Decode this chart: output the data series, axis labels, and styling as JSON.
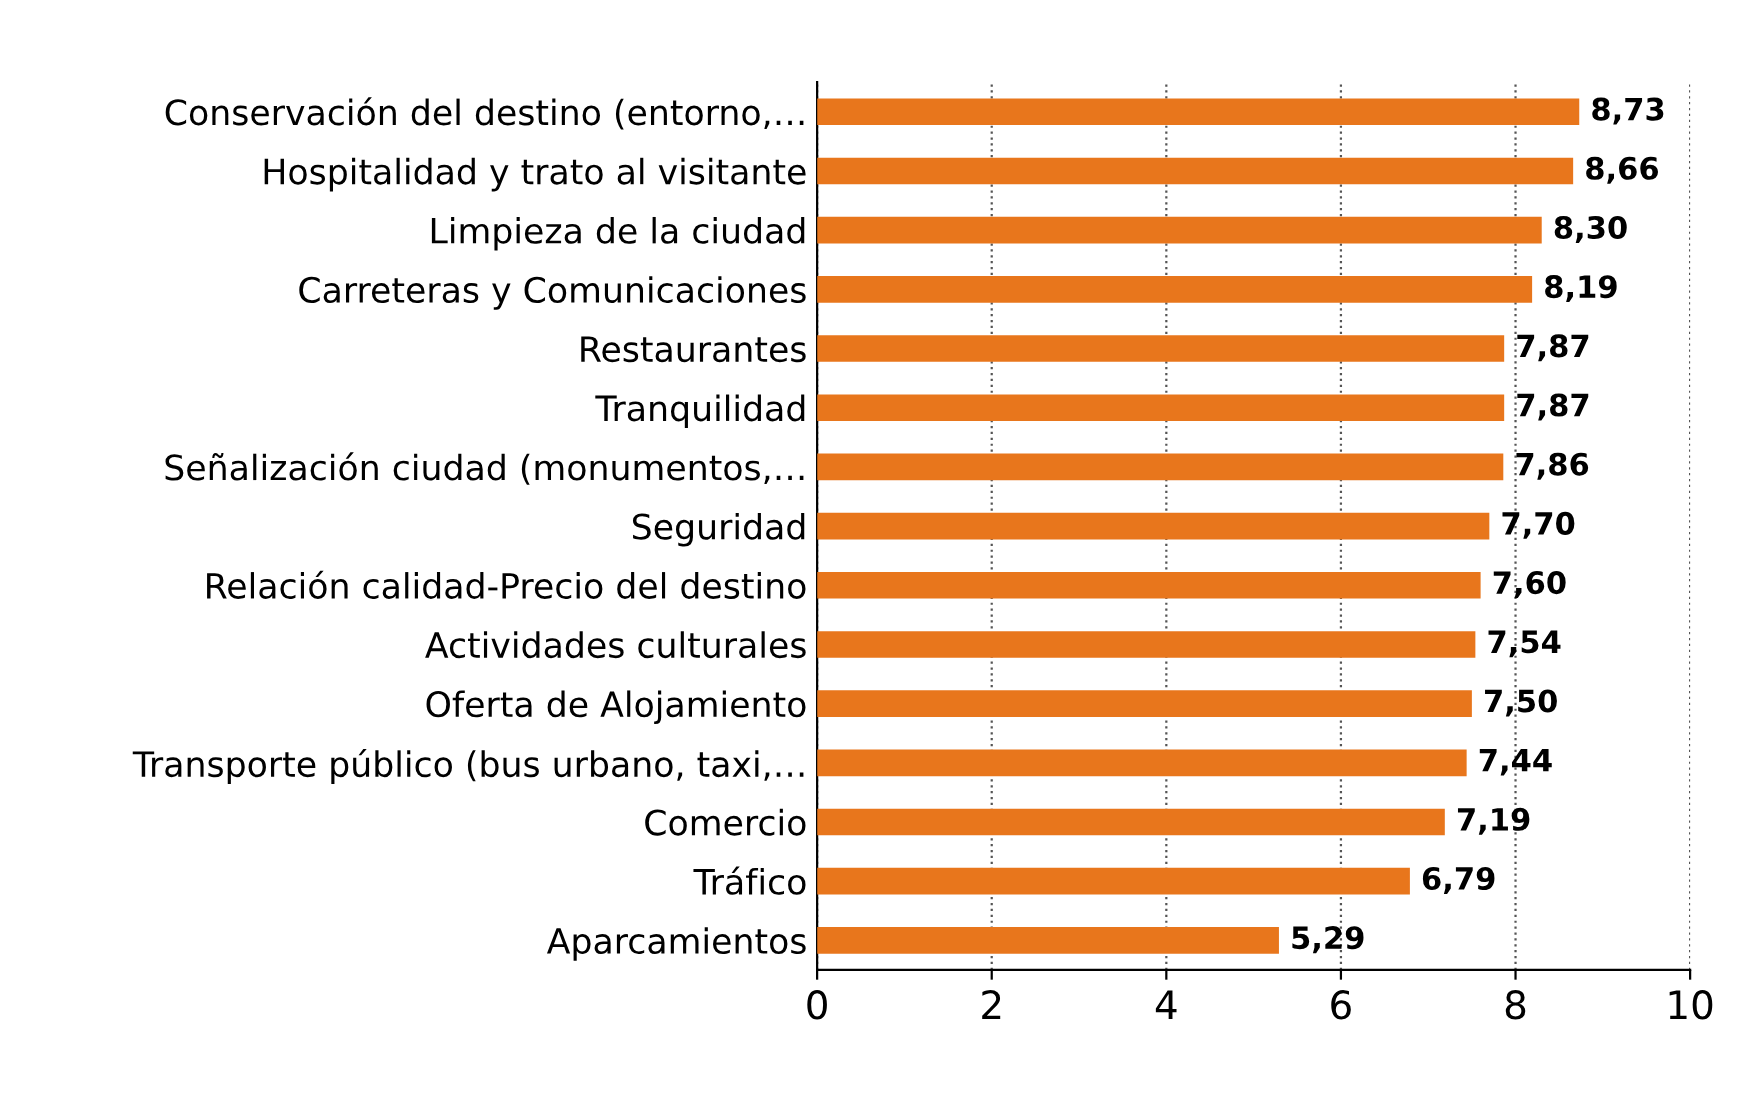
{
  "chart_data": {
    "type": "bar",
    "orientation": "horizontal",
    "categories": [
      "Conservación del destino (entorno,…",
      "Hospitalidad y trato al visitante",
      "Limpieza de la ciudad",
      "Carreteras y Comunicaciones",
      "Restaurantes",
      "Tranquilidad",
      "Señalización ciudad (monumentos,…",
      "Seguridad",
      "Relación calidad-Precio del destino",
      "Actividades culturales",
      "Oferta de Alojamiento",
      "Transporte público (bus urbano, taxi,…",
      "Comercio",
      "Tráfico",
      "Aparcamientos"
    ],
    "values": [
      8.73,
      8.66,
      8.3,
      8.19,
      7.87,
      7.87,
      7.86,
      7.7,
      7.6,
      7.54,
      7.5,
      7.44,
      7.19,
      6.79,
      5.29
    ],
    "value_labels": [
      "8,73",
      "8,66",
      "8,30",
      "8,19",
      "7,87",
      "7,87",
      "7,86",
      "7,70",
      "7,60",
      "7,54",
      "7,50",
      "7,44",
      "7,19",
      "6,79",
      "5,29"
    ],
    "color": "#e8761c",
    "xlim": [
      0,
      10
    ],
    "xticks": [
      0,
      2,
      4,
      6,
      8,
      10
    ],
    "grid": "x"
  }
}
